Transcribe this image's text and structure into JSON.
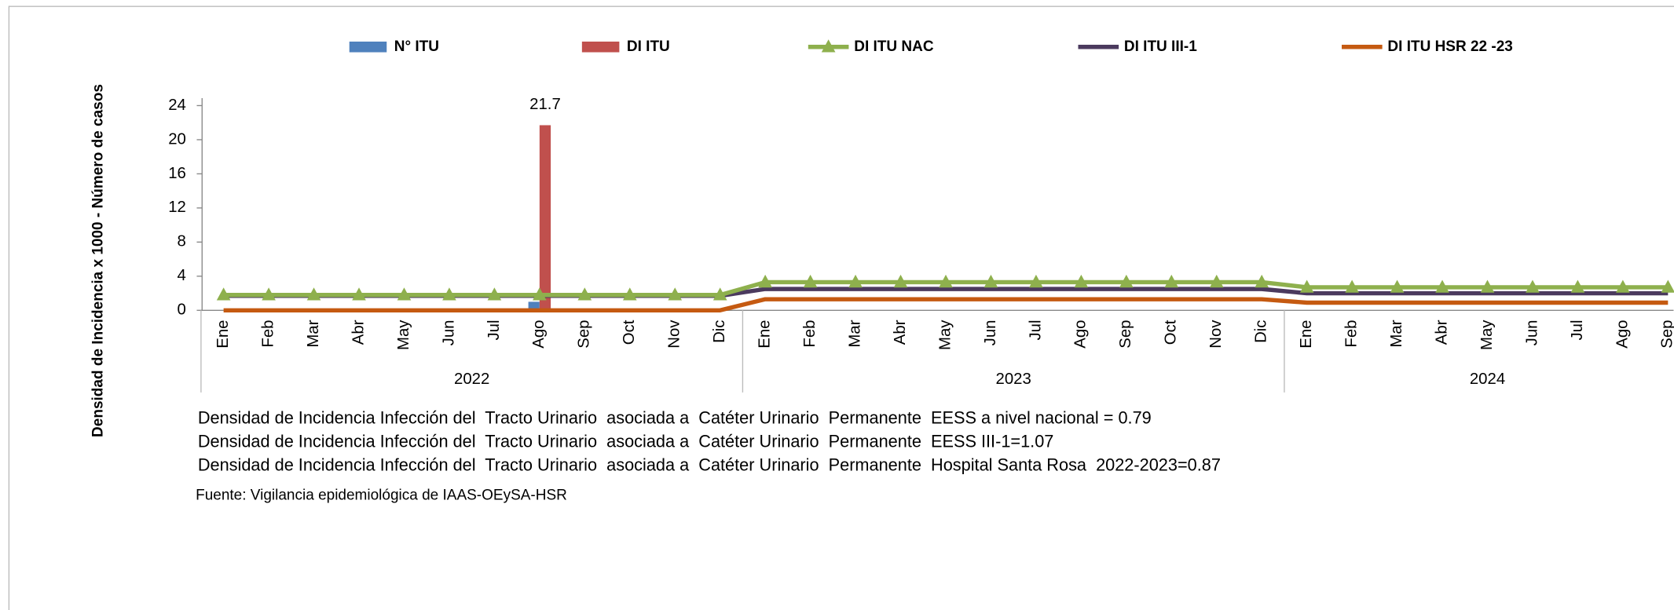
{
  "chart_data": {
    "type": "bar-line",
    "y_label": "Densidad de Incidencia x 1000 - Número de casos",
    "groups": [
      {
        "label": "2022",
        "categories": [
          "Ene",
          "Feb",
          "Mar",
          "Abr",
          "May",
          "Jun",
          "Jul",
          "Ago",
          "Sep",
          "Oct",
          "Nov",
          "Dic"
        ]
      },
      {
        "label": "2023",
        "categories": [
          "Ene",
          "Feb",
          "Mar",
          "Abr",
          "May",
          "Jun",
          "Jul",
          "Ago",
          "Sep",
          "Oct",
          "Nov",
          "Dic"
        ]
      },
      {
        "label": "2024",
        "categories": [
          "Ene",
          "Feb",
          "Mar",
          "Abr",
          "May",
          "Jun",
          "Jul",
          "Ago",
          "Sep"
        ]
      }
    ],
    "ylim": [
      0,
      24
    ],
    "yticks": [
      0,
      4,
      8,
      12,
      16,
      20,
      24
    ],
    "series": [
      {
        "name": "N° ITU",
        "type": "bar",
        "color": "#4f81bd",
        "values": [
          0,
          0,
          0,
          0,
          0,
          0,
          0,
          1,
          0,
          0,
          0,
          0,
          0,
          0,
          0,
          0,
          0,
          0,
          0,
          0,
          0,
          0,
          0,
          0,
          0,
          0,
          0,
          0,
          0,
          0,
          0,
          0,
          0
        ]
      },
      {
        "name": "DI ITU",
        "type": "bar",
        "color": "#c0504d",
        "values": [
          0,
          0,
          0,
          0,
          0,
          0,
          0,
          21.7,
          0,
          0,
          0,
          0,
          0,
          0,
          0,
          0,
          0,
          0,
          0,
          0,
          0,
          0,
          0,
          0,
          0,
          0,
          0,
          0,
          0,
          0,
          0,
          0,
          0
        ],
        "value_labels": [
          null,
          null,
          null,
          null,
          null,
          null,
          null,
          "21.7",
          null,
          null,
          null,
          null,
          null,
          null,
          null,
          null,
          null,
          null,
          null,
          null,
          null,
          null,
          null,
          null,
          null,
          null,
          null,
          null,
          null,
          null,
          null,
          null,
          null
        ]
      },
      {
        "name": "DI ITU NAC",
        "type": "line",
        "marker": "triangle",
        "color": "#8eb04d",
        "values": [
          1.8,
          1.8,
          1.8,
          1.8,
          1.8,
          1.8,
          1.8,
          1.8,
          1.8,
          1.8,
          1.8,
          1.8,
          3.3,
          3.3,
          3.3,
          3.3,
          3.3,
          3.3,
          3.3,
          3.3,
          3.3,
          3.3,
          3.3,
          3.3,
          2.7,
          2.7,
          2.7,
          2.7,
          2.7,
          2.7,
          2.7,
          2.7,
          2.7
        ]
      },
      {
        "name": "DI ITU III-1",
        "type": "line",
        "color": "#4b3a5e",
        "values": [
          1.7,
          1.7,
          1.7,
          1.7,
          1.7,
          1.7,
          1.7,
          1.7,
          1.7,
          1.7,
          1.7,
          1.7,
          2.5,
          2.5,
          2.5,
          2.5,
          2.5,
          2.5,
          2.5,
          2.5,
          2.5,
          2.5,
          2.5,
          2.5,
          2.0,
          2.0,
          2.0,
          2.0,
          2.0,
          2.0,
          2.0,
          2.0,
          2.0
        ]
      },
      {
        "name": "DI ITU HSR 22 -23",
        "type": "line",
        "color": "#c55a11",
        "values": [
          0,
          0,
          0,
          0,
          0,
          0,
          0,
          0,
          0,
          0,
          0,
          0,
          1.3,
          1.3,
          1.3,
          1.3,
          1.3,
          1.3,
          1.3,
          1.3,
          1.3,
          1.3,
          1.3,
          1.3,
          0.9,
          0.9,
          0.9,
          0.9,
          0.9,
          0.9,
          0.9,
          0.9,
          0.9
        ]
      }
    ],
    "notes": [
      "Densidad de Incidencia Infección del  Tracto Urinario  asociada a  Catéter Urinario  Permanente  EESS a nivel nacional = 0.79",
      "Densidad de Incidencia Infección del  Tracto Urinario  asociada a  Catéter Urinario  Permanente  EESS III-1=1.07",
      "Densidad de Incidencia Infección del  Tracto Urinario  asociada a  Catéter Urinario  Permanente  Hospital Santa Rosa  2022-2023=0.87"
    ],
    "source": "Fuente: Vigilancia epidemiológica de IAAS-OEySA-HSR"
  }
}
